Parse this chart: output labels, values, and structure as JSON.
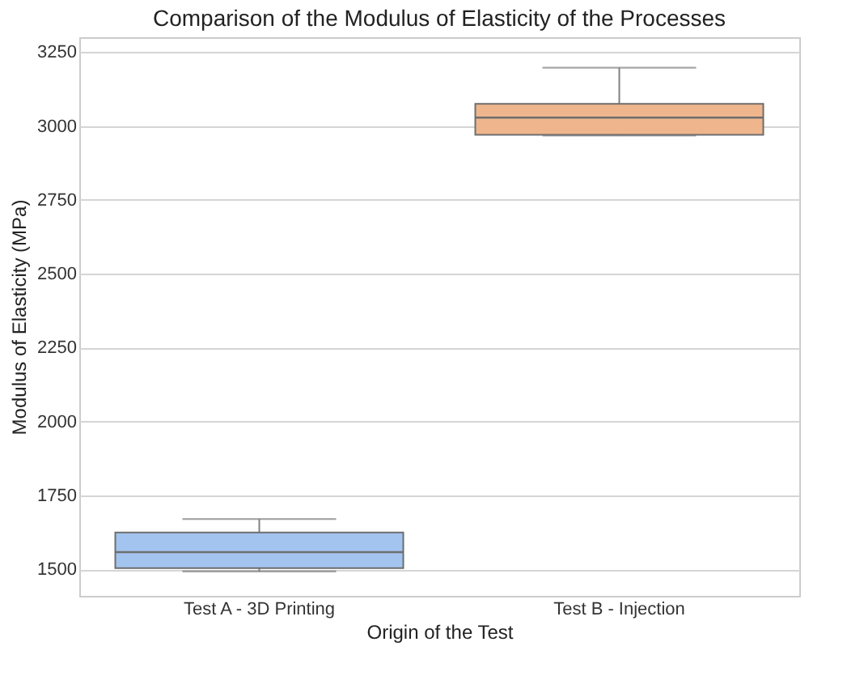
{
  "chart_data": {
    "type": "box",
    "title": "Comparison of the Modulus of Elasticity of the Processes",
    "xlabel": "Origin of the Test",
    "ylabel": "Modulus of Elasticity (MPa)",
    "categories": [
      "Test A - 3D Printing",
      "Test B - Injection"
    ],
    "boxes": [
      {
        "low": 1493,
        "q1": 1504,
        "median": 1558,
        "q3": 1624,
        "high": 1670
      },
      {
        "low": 2968,
        "q1": 2970,
        "median": 3028,
        "q3": 3075,
        "high": 3197
      }
    ],
    "colors": [
      "#a3c4ef",
      "#efb68d"
    ],
    "ylim": [
      1410,
      3300
    ],
    "yticks": [
      1500,
      1750,
      2000,
      2250,
      2500,
      2750,
      3000,
      3250
    ],
    "grid": "y"
  }
}
